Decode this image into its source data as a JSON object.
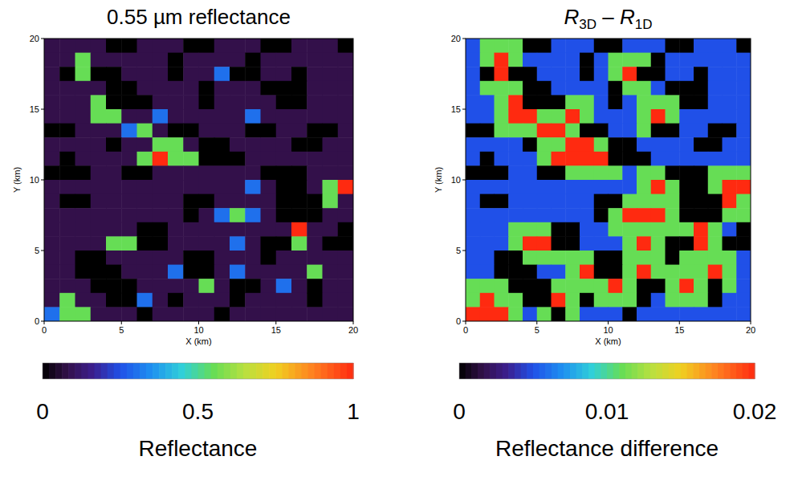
{
  "chart_data": [
    {
      "type": "heatmap",
      "title": "0.55 µm reflectance",
      "xlabel": "X (km)",
      "ylabel": "Y (km)",
      "xlim": [
        0,
        20
      ],
      "ylim": [
        0,
        20
      ],
      "xticks": [
        0,
        5,
        10,
        15,
        20
      ],
      "yticks": [
        0,
        5,
        10,
        15,
        20
      ],
      "zlim": [
        0,
        1
      ],
      "zticks": [
        0,
        0.5,
        1
      ],
      "zlabel": "Reflectance",
      "values": [
        [
          0.08,
          0.08,
          0.08,
          0.08,
          0,
          0,
          0.08,
          0.08,
          0.08,
          0,
          0,
          0.08,
          0.08,
          0.08,
          0,
          0,
          0.08,
          0.08,
          0.08,
          0
        ],
        [
          0.08,
          0.08,
          0.55,
          0.08,
          0.08,
          0.08,
          0.08,
          0.08,
          0,
          0.08,
          0.08,
          0.08,
          0.08,
          0,
          0.08,
          0.08,
          0.08,
          0.08,
          0.08,
          0.08
        ],
        [
          0.08,
          0,
          0.55,
          0,
          0,
          0.08,
          0.08,
          0.08,
          0,
          0.08,
          0.08,
          0.3,
          0,
          0,
          0.08,
          0.08,
          0,
          0.08,
          0.08,
          0.08
        ],
        [
          0.08,
          0.08,
          0.08,
          0.08,
          0,
          0,
          0.08,
          0.08,
          0.08,
          0.08,
          0,
          0.08,
          0.08,
          0.08,
          0,
          0,
          0,
          0.08,
          0.08,
          0.08
        ],
        [
          0.08,
          0.08,
          0.08,
          0.55,
          0,
          0,
          0,
          0.08,
          0.08,
          0.08,
          0,
          0.08,
          0.08,
          0.08,
          0.08,
          0,
          0,
          0.08,
          0.08,
          0.08
        ],
        [
          0.08,
          0.08,
          0.08,
          0.55,
          0.55,
          0.08,
          0.08,
          0.3,
          0.08,
          0.08,
          0.08,
          0.08,
          0.08,
          0.3,
          0.08,
          0.08,
          0.08,
          0.08,
          0.08,
          0.08
        ],
        [
          0,
          0,
          0.08,
          0.08,
          0.08,
          0.3,
          0.55,
          0.08,
          0,
          0,
          0.08,
          0.08,
          0.08,
          0,
          0,
          0.08,
          0.08,
          0,
          0,
          0.08
        ],
        [
          0.08,
          0.08,
          0.08,
          0.08,
          0,
          0.08,
          0.08,
          0.55,
          0.55,
          0.08,
          0,
          0,
          0.08,
          0.08,
          0.08,
          0.08,
          0,
          0,
          0.08,
          0.08
        ],
        [
          0.08,
          0,
          0.08,
          0.08,
          0.08,
          0.08,
          0.55,
          1,
          0.55,
          0.55,
          0,
          0,
          0,
          0.08,
          0.08,
          0.08,
          0.08,
          0.08,
          0.08,
          0.08
        ],
        [
          0,
          0,
          0,
          0.08,
          0.08,
          0,
          0,
          0.08,
          0.08,
          0.08,
          0.08,
          0.08,
          0.08,
          0.08,
          0,
          0,
          0,
          0.08,
          0.08,
          0.08
        ],
        [
          0.08,
          0.08,
          0.08,
          0.08,
          0.08,
          0.08,
          0.08,
          0.08,
          0.08,
          0.08,
          0.08,
          0.08,
          0.08,
          0.3,
          0.08,
          0,
          0,
          0.08,
          0.55,
          1
        ],
        [
          0.08,
          0,
          0,
          0.08,
          0.08,
          0.08,
          0.08,
          0.08,
          0.08,
          0,
          0,
          0.08,
          0.08,
          0.08,
          0.08,
          0,
          0,
          0,
          0.55,
          0.08
        ],
        [
          0.08,
          0.08,
          0.08,
          0.08,
          0.08,
          0.08,
          0.08,
          0.08,
          0.08,
          0,
          0.08,
          0.3,
          0.55,
          0.3,
          0.08,
          0,
          0,
          0,
          0.08,
          0.08
        ],
        [
          0.08,
          0.08,
          0.08,
          0.08,
          0.08,
          0.08,
          0,
          0,
          0.08,
          0.08,
          0.08,
          0.08,
          0.08,
          0.08,
          0.08,
          0.08,
          1,
          0.08,
          0.08,
          0
        ],
        [
          0.08,
          0.08,
          0.08,
          0.08,
          0.55,
          0.55,
          0,
          0,
          0.08,
          0.08,
          0.08,
          0.08,
          0.3,
          0.08,
          0,
          0,
          0.55,
          0.08,
          0,
          0
        ],
        [
          0.08,
          0.08,
          0,
          0,
          0.08,
          0.08,
          0.08,
          0.08,
          0.08,
          0,
          0,
          0.08,
          0.08,
          0.08,
          0,
          0.08,
          0.08,
          0.08,
          0.08,
          0.08
        ],
        [
          0.08,
          0.08,
          0,
          0,
          0,
          0.08,
          0.08,
          0.08,
          0.3,
          0,
          0,
          0.08,
          0.3,
          0.08,
          0.08,
          0.08,
          0.08,
          0.55,
          0.08,
          0.08
        ],
        [
          0.08,
          0.08,
          0.08,
          0,
          0,
          0,
          0.08,
          0.08,
          0.08,
          0.08,
          0.55,
          0.08,
          0,
          0,
          0.08,
          0.3,
          0.08,
          0,
          0.08,
          0.08
        ],
        [
          0.08,
          0.55,
          0.08,
          0.08,
          0,
          0,
          0.3,
          0.08,
          0,
          0.08,
          0.08,
          0.08,
          0,
          0.08,
          0.08,
          0.08,
          0.08,
          0,
          0.08,
          0.08
        ],
        [
          0.3,
          0.55,
          0.55,
          0.08,
          0.08,
          0.08,
          0,
          0.08,
          0.08,
          0.08,
          0.08,
          0,
          0.08,
          0.08,
          0.08,
          0.08,
          0.08,
          0.08,
          0.08,
          0.08
        ]
      ]
    },
    {
      "type": "heatmap",
      "title": "R3D – R1D",
      "xlabel": "X (km)",
      "ylabel": "Y (km)",
      "xlim": [
        0,
        20
      ],
      "ylim": [
        0,
        20
      ],
      "xticks": [
        0,
        5,
        10,
        15,
        20
      ],
      "yticks": [
        0,
        5,
        10,
        15,
        20
      ],
      "zlim": [
        0,
        0.02
      ],
      "zticks": [
        0,
        0.01,
        0.02
      ],
      "zlabel": "Reflectance difference",
      "values": [
        [
          0.005,
          0.011,
          0.011,
          0.011,
          0,
          0,
          0.005,
          0.005,
          0.005,
          0,
          0,
          0.005,
          0.005,
          0.005,
          0,
          0,
          0.005,
          0.005,
          0.005,
          0
        ],
        [
          0.005,
          0.011,
          0.02,
          0.011,
          0.005,
          0.005,
          0.005,
          0.005,
          0,
          0.005,
          0.011,
          0.011,
          0.011,
          0,
          0.005,
          0.005,
          0.005,
          0.005,
          0.005,
          0.005
        ],
        [
          0.005,
          0,
          0.02,
          0,
          0,
          0.005,
          0.005,
          0.005,
          0,
          0.005,
          0.011,
          0.02,
          0,
          0,
          0.005,
          0.005,
          0,
          0.005,
          0.005,
          0.005
        ],
        [
          0.005,
          0.011,
          0.011,
          0.011,
          0,
          0,
          0.005,
          0.005,
          0.005,
          0.005,
          0,
          0.011,
          0.011,
          0.005,
          0,
          0,
          0,
          0.005,
          0.005,
          0.005
        ],
        [
          0.005,
          0.005,
          0.011,
          0.02,
          0,
          0,
          0,
          0.011,
          0.011,
          0.005,
          0,
          0.005,
          0.011,
          0.011,
          0.011,
          0,
          0,
          0.005,
          0.005,
          0.005
        ],
        [
          0.005,
          0.005,
          0.011,
          0.02,
          0.02,
          0.011,
          0.011,
          0.02,
          0.011,
          0.005,
          0.005,
          0.005,
          0.011,
          0.02,
          0.011,
          0.005,
          0.005,
          0.005,
          0.005,
          0.005
        ],
        [
          0,
          0,
          0.011,
          0.011,
          0.011,
          0.02,
          0.02,
          0.011,
          0,
          0,
          0.005,
          0.005,
          0.011,
          0,
          0,
          0.005,
          0.005,
          0,
          0,
          0.005
        ],
        [
          0.005,
          0.005,
          0.005,
          0.005,
          0,
          0.011,
          0.011,
          0.02,
          0.02,
          0.011,
          0,
          0,
          0.005,
          0.005,
          0.005,
          0.005,
          0,
          0,
          0.005,
          0.005
        ],
        [
          0.005,
          0,
          0.005,
          0.005,
          0.005,
          0.011,
          0.02,
          0.02,
          0.02,
          0.02,
          0,
          0,
          0,
          0.005,
          0.005,
          0.005,
          0.005,
          0.005,
          0.005,
          0.005
        ],
        [
          0,
          0,
          0,
          0.005,
          0.005,
          0,
          0,
          0.011,
          0.011,
          0.011,
          0.011,
          0.005,
          0.011,
          0.011,
          0,
          0,
          0,
          0.011,
          0.011,
          0.011
        ],
        [
          0.005,
          0.005,
          0.005,
          0.005,
          0.005,
          0.005,
          0.005,
          0.005,
          0.005,
          0.005,
          0.005,
          0.005,
          0.011,
          0.02,
          0.011,
          0,
          0,
          0.011,
          0.02,
          0.02
        ],
        [
          0.005,
          0,
          0,
          0.005,
          0.005,
          0.005,
          0.005,
          0.005,
          0.005,
          0,
          0,
          0.011,
          0.011,
          0.011,
          0.011,
          0,
          0,
          0,
          0.02,
          0.011
        ],
        [
          0.005,
          0.005,
          0.005,
          0.005,
          0.005,
          0.005,
          0.005,
          0.005,
          0.005,
          0,
          0.011,
          0.02,
          0.02,
          0.02,
          0.011,
          0,
          0,
          0,
          0.011,
          0.011
        ],
        [
          0.005,
          0.005,
          0.005,
          0.011,
          0.011,
          0.011,
          0,
          0,
          0.005,
          0.005,
          0.011,
          0.011,
          0.011,
          0.011,
          0.011,
          0.011,
          0.02,
          0.011,
          0.005,
          0
        ],
        [
          0.005,
          0.005,
          0.005,
          0.011,
          0.02,
          0.02,
          0,
          0,
          0.005,
          0.005,
          0.005,
          0.011,
          0.02,
          0.011,
          0,
          0,
          0.02,
          0.011,
          0,
          0
        ],
        [
          0.005,
          0.005,
          0,
          0,
          0.011,
          0.011,
          0.011,
          0.011,
          0.011,
          0,
          0,
          0.011,
          0.011,
          0.011,
          0,
          0.011,
          0.011,
          0.011,
          0.011,
          0.005
        ],
        [
          0.005,
          0.005,
          0,
          0,
          0,
          0.005,
          0.005,
          0.011,
          0.02,
          0,
          0,
          0.011,
          0.02,
          0.011,
          0.011,
          0.011,
          0.011,
          0.02,
          0.011,
          0.005
        ],
        [
          0.011,
          0.011,
          0.011,
          0,
          0,
          0,
          0.011,
          0.011,
          0.011,
          0.011,
          0.02,
          0.011,
          0,
          0,
          0.011,
          0.02,
          0.011,
          0,
          0.011,
          0.005
        ],
        [
          0.011,
          0.02,
          0.011,
          0.011,
          0,
          0,
          0.02,
          0.011,
          0,
          0.011,
          0.011,
          0.011,
          0,
          0.005,
          0.011,
          0.011,
          0.011,
          0,
          0.005,
          0.005
        ],
        [
          0.02,
          0.02,
          0.02,
          0.011,
          0.005,
          0.011,
          0,
          0.011,
          0.005,
          0.005,
          0.005,
          0,
          0.005,
          0.005,
          0.005,
          0.005,
          0.005,
          0.005,
          0.005,
          0.005
        ]
      ]
    }
  ]
}
